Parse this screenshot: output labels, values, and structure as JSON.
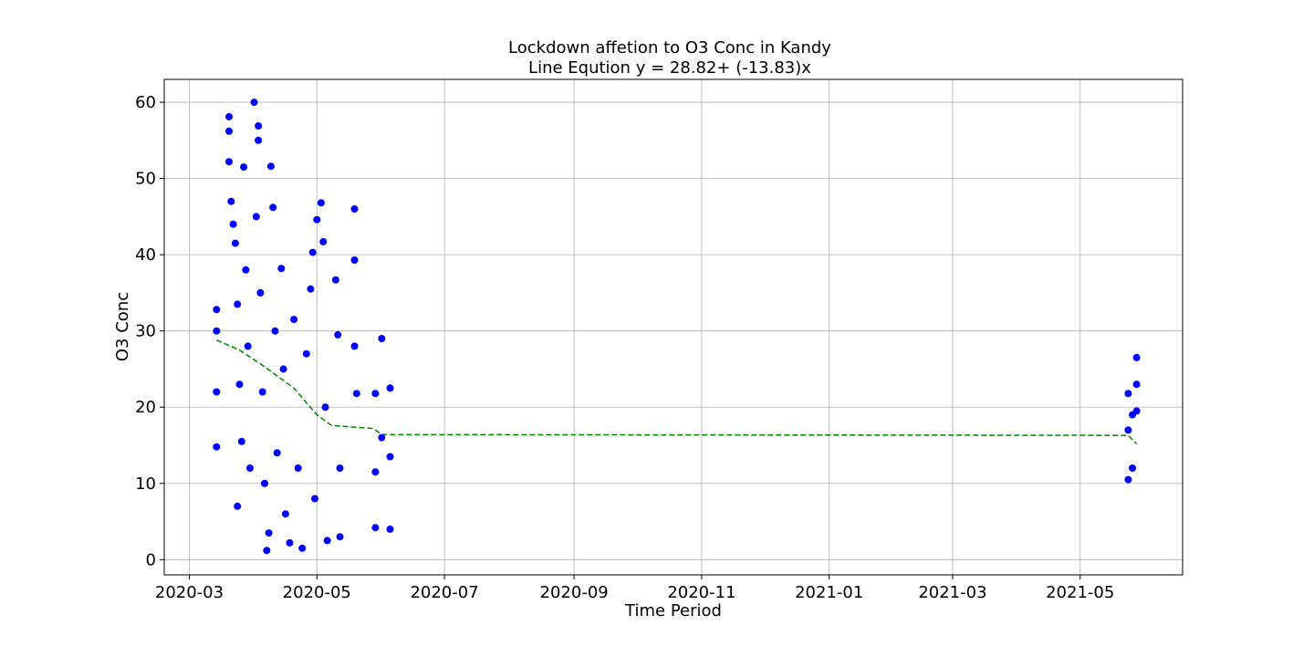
{
  "chart_data": {
    "type": "scatter",
    "title": "Lockdown affetion to O3 Conc in Kandy",
    "subtitle": "Line Eqution y = 28.82+ (-13.83)x",
    "xlabel": "Time Period",
    "ylabel": "O3 Conc",
    "x_axis_type": "date",
    "xlim": [
      "2020-02-18",
      "2021-06-19"
    ],
    "ylim": [
      -2,
      63
    ],
    "x_ticks": [
      "2020-03",
      "2020-05",
      "2020-07",
      "2020-09",
      "2020-11",
      "2021-01",
      "2021-03",
      "2021-05"
    ],
    "y_ticks": [
      0,
      10,
      20,
      30,
      40,
      50,
      60
    ],
    "grid": true,
    "legend": "none",
    "colors": {
      "points": "#0000ff",
      "trend": "#008000",
      "grid": "#b0b0b0",
      "axes": "#000000"
    },
    "series": [
      {
        "kind": "scatter",
        "points_approx": [
          [
            "2020-03-14",
            32.8
          ],
          [
            "2020-03-14",
            30
          ],
          [
            "2020-03-14",
            22
          ],
          [
            "2020-03-14",
            14.8
          ],
          [
            "2020-03-20",
            58.1
          ],
          [
            "2020-03-20",
            56.2
          ],
          [
            "2020-03-20",
            52.2
          ],
          [
            "2020-03-21",
            47
          ],
          [
            "2020-03-22",
            44
          ],
          [
            "2020-03-23",
            41.5
          ],
          [
            "2020-03-24",
            33.5
          ],
          [
            "2020-03-24",
            7
          ],
          [
            "2020-03-25",
            23
          ],
          [
            "2020-03-26",
            15.5
          ],
          [
            "2020-03-27",
            51.5
          ],
          [
            "2020-03-28",
            38
          ],
          [
            "2020-03-29",
            28
          ],
          [
            "2020-03-30",
            12
          ],
          [
            "2020-04-01",
            60
          ],
          [
            "2020-04-02",
            45
          ],
          [
            "2020-04-03",
            56.9
          ],
          [
            "2020-04-03",
            55
          ],
          [
            "2020-04-04",
            35
          ],
          [
            "2020-04-05",
            22
          ],
          [
            "2020-04-06",
            10
          ],
          [
            "2020-04-07",
            1.2
          ],
          [
            "2020-04-08",
            3.5
          ],
          [
            "2020-04-09",
            51.6
          ],
          [
            "2020-04-10",
            46.2
          ],
          [
            "2020-04-11",
            30
          ],
          [
            "2020-04-12",
            14
          ],
          [
            "2020-04-14",
            38.2
          ],
          [
            "2020-04-15",
            25
          ],
          [
            "2020-04-16",
            6
          ],
          [
            "2020-04-18",
            2.2
          ],
          [
            "2020-04-20",
            31.5
          ],
          [
            "2020-04-22",
            12
          ],
          [
            "2020-04-24",
            1.5
          ],
          [
            "2020-04-26",
            27
          ],
          [
            "2020-04-28",
            35.5
          ],
          [
            "2020-04-29",
            40.3
          ],
          [
            "2020-04-30",
            8
          ],
          [
            "2020-05-01",
            44.6
          ],
          [
            "2020-05-03",
            46.8
          ],
          [
            "2020-05-04",
            41.7
          ],
          [
            "2020-05-05",
            20
          ],
          [
            "2020-05-06",
            2.5
          ],
          [
            "2020-05-10",
            36.7
          ],
          [
            "2020-05-11",
            29.5
          ],
          [
            "2020-05-12",
            12
          ],
          [
            "2020-05-12",
            3
          ],
          [
            "2020-05-19",
            46
          ],
          [
            "2020-05-19",
            39.3
          ],
          [
            "2020-05-19",
            28
          ],
          [
            "2020-05-20",
            21.8
          ],
          [
            "2020-05-29",
            21.8
          ],
          [
            "2020-05-29",
            11.5
          ],
          [
            "2020-05-29",
            4.2
          ],
          [
            "2020-06-01",
            29
          ],
          [
            "2020-06-01",
            16
          ],
          [
            "2020-06-05",
            22.5
          ],
          [
            "2020-06-05",
            13.5
          ],
          [
            "2020-06-05",
            4
          ],
          [
            "2021-05-24",
            21.8
          ],
          [
            "2021-05-24",
            17
          ],
          [
            "2021-05-24",
            10.5
          ],
          [
            "2021-05-26",
            19
          ],
          [
            "2021-05-26",
            12
          ],
          [
            "2021-05-28",
            26.5
          ],
          [
            "2021-05-28",
            23
          ],
          [
            "2021-05-28",
            19.5
          ]
        ]
      },
      {
        "kind": "trend",
        "style": "dashed",
        "points_approx": [
          [
            "2020-03-14",
            28.8
          ],
          [
            "2020-03-25",
            27.5
          ],
          [
            "2020-04-05",
            25.5
          ],
          [
            "2020-04-20",
            22.5
          ],
          [
            "2020-05-01",
            19
          ],
          [
            "2020-05-08",
            17.6
          ],
          [
            "2020-05-28",
            17.2
          ],
          [
            "2020-06-01",
            16.4
          ],
          [
            "2021-05-24",
            16.3
          ],
          [
            "2021-05-28",
            15.2
          ]
        ]
      }
    ]
  }
}
